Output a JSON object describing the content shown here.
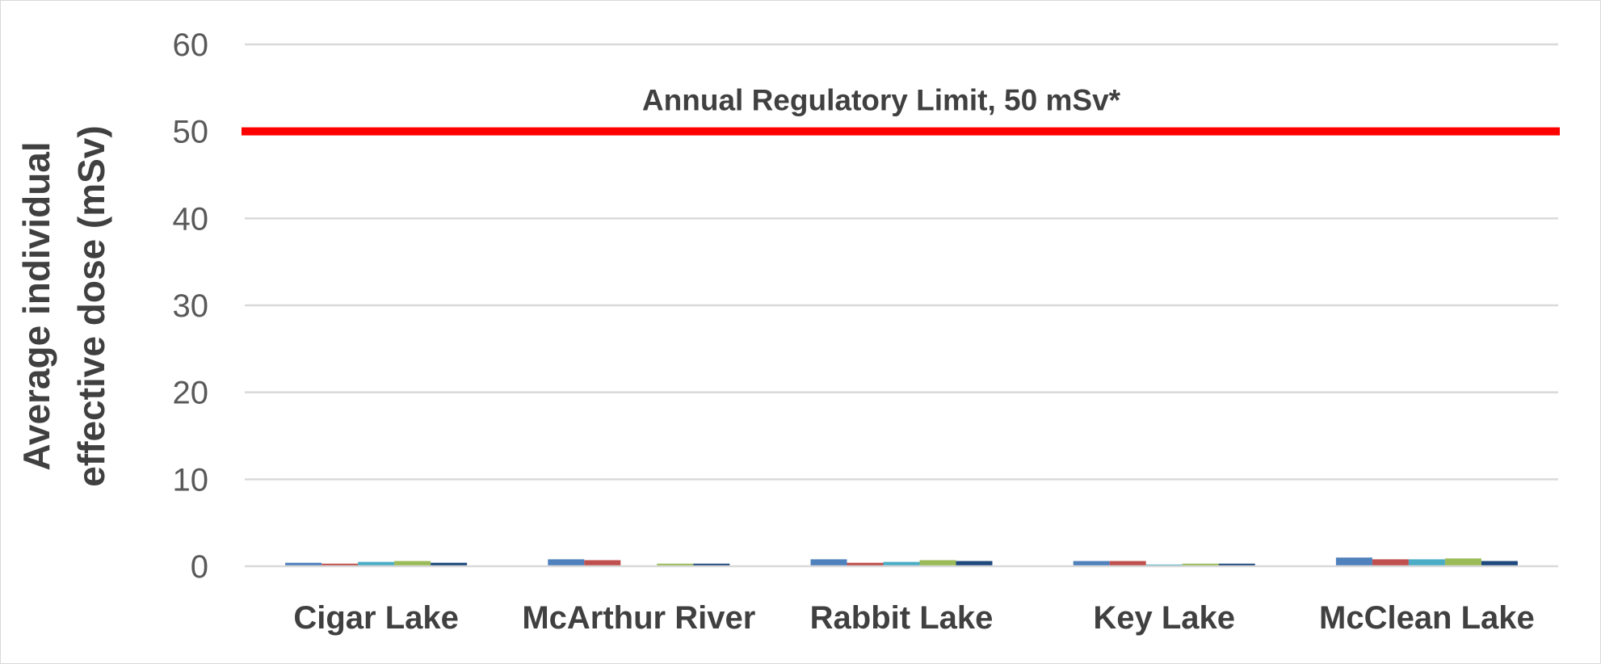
{
  "chart_data": {
    "type": "bar",
    "title": "",
    "ylabel": "Average individual effective dose (mSv)",
    "ylabel_lines": [
      "Average individual",
      "effective dose (mSv)"
    ],
    "xlabel": "",
    "ylim": [
      0,
      60
    ],
    "yticks": [
      0,
      10,
      20,
      30,
      40,
      50,
      60
    ],
    "grid": true,
    "categories": [
      "Cigar Lake",
      "McArthur River",
      "Rabbit Lake",
      "Key Lake",
      "McClean Lake"
    ],
    "series": [
      {
        "color": "#4f81bd",
        "values": [
          0.4,
          0.8,
          0.8,
          0.6,
          1.0
        ]
      },
      {
        "color": "#c0504d",
        "values": [
          0.3,
          0.7,
          0.4,
          0.6,
          0.8
        ]
      },
      {
        "color": "#4bacc6",
        "values": [
          0.5,
          0.1,
          0.5,
          0.2,
          0.8
        ]
      },
      {
        "color": "#9bbb59",
        "values": [
          0.6,
          0.3,
          0.7,
          0.3,
          0.9
        ]
      },
      {
        "color": "#1f497d",
        "values": [
          0.4,
          0.3,
          0.6,
          0.3,
          0.6
        ]
      }
    ],
    "reference_line": {
      "value": 50,
      "label": "Annual Regulatory Limit, 50 mSv*",
      "color": "#ff0000"
    }
  },
  "colors": {
    "grid": "#d9d9d9",
    "axis": "#d9d9d9",
    "border": "#d9d9d9"
  }
}
